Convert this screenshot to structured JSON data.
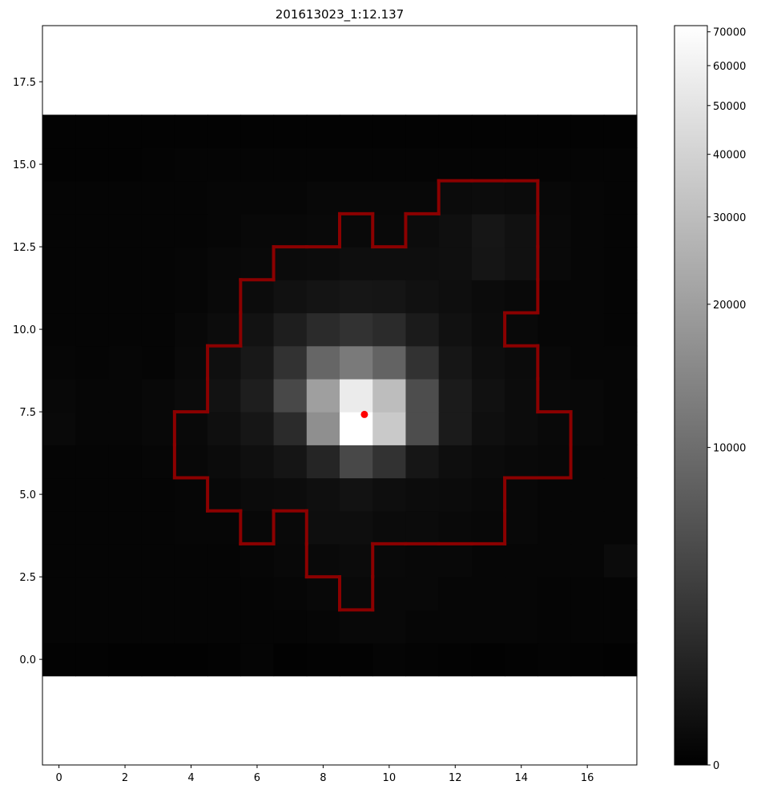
{
  "chart_data": [
    {
      "type": "heatmap",
      "title": "201613023_1:12.137",
      "xlabel": "",
      "ylabel": "",
      "xlim": [
        -0.5,
        17.5
      ],
      "ylim": [
        -3.2,
        19.2
      ],
      "x_ticks": [
        0,
        2,
        4,
        6,
        8,
        10,
        12,
        14,
        16
      ],
      "x_tick_labels": [
        "0",
        "2",
        "4",
        "6",
        "8",
        "10",
        "12",
        "14",
        "16"
      ],
      "y_ticks": [
        0.0,
        2.5,
        5.0,
        7.5,
        10.0,
        12.5,
        15.0,
        17.5
      ],
      "y_tick_labels": [
        "0.0",
        "2.5",
        "5.0",
        "7.5",
        "10.0",
        "12.5",
        "15.0",
        "17.5"
      ],
      "colormap": "gray",
      "grid": false,
      "pixel_values_note_rows_bottom_to_top_y0_to_y16_cols_x0_to_x17": true,
      "values": [
        [
          200,
          200,
          150,
          150,
          150,
          200,
          300,
          150,
          200,
          200,
          300,
          250,
          200,
          150,
          200,
          250,
          200,
          150
        ],
        [
          300,
          300,
          300,
          300,
          300,
          300,
          300,
          300,
          400,
          500,
          500,
          400,
          400,
          400,
          400,
          300,
          300,
          300
        ],
        [
          300,
          300,
          300,
          300,
          300,
          300,
          300,
          400,
          500,
          600,
          500,
          500,
          400,
          400,
          400,
          300,
          300,
          300
        ],
        [
          300,
          300,
          300,
          300,
          350,
          350,
          400,
          500,
          600,
          700,
          600,
          500,
          500,
          400,
          400,
          400,
          400,
          700
        ],
        [
          300,
          300,
          300,
          350,
          400,
          400,
          500,
          600,
          900,
          900,
          700,
          700,
          600,
          500,
          500,
          400,
          400,
          400
        ],
        [
          300,
          300,
          300,
          350,
          400,
          500,
          700,
          800,
          1000,
          1200,
          900,
          800,
          700,
          600,
          500,
          400,
          400,
          400
        ],
        [
          300,
          300,
          300,
          400,
          500,
          700,
          1000,
          1400,
          2500,
          5500,
          3500,
          1500,
          900,
          700,
          600,
          500,
          400,
          400
        ],
        [
          600,
          400,
          400,
          500,
          600,
          1000,
          1500,
          3000,
          16000,
          75000,
          35000,
          6000,
          1800,
          1000,
          800,
          600,
          500,
          400
        ],
        [
          500,
          400,
          400,
          500,
          700,
          1200,
          2000,
          5500,
          20000,
          55000,
          30000,
          6000,
          1800,
          1100,
          800,
          600,
          500,
          400
        ],
        [
          400,
          350,
          400,
          300,
          600,
          1000,
          1600,
          3500,
          9000,
          12000,
          8500,
          3500,
          1500,
          900,
          700,
          500,
          400,
          400
        ],
        [
          300,
          300,
          300,
          300,
          500,
          800,
          1200,
          2000,
          3000,
          3500,
          3000,
          1800,
          1100,
          800,
          600,
          400,
          400,
          300
        ],
        [
          300,
          300,
          300,
          300,
          400,
          600,
          800,
          1100,
          1300,
          1500,
          1400,
          1100,
          900,
          700,
          600,
          400,
          400,
          300
        ],
        [
          300,
          300,
          300,
          300,
          400,
          500,
          600,
          700,
          800,
          900,
          900,
          900,
          1000,
          1400,
          1100,
          600,
          400,
          300
        ],
        [
          300,
          300,
          300,
          300,
          350,
          400,
          500,
          500,
          600,
          600,
          600,
          800,
          1000,
          1500,
          1100,
          600,
          400,
          300
        ],
        [
          300,
          300,
          300,
          300,
          300,
          400,
          400,
          400,
          500,
          500,
          500,
          500,
          700,
          800,
          700,
          500,
          400,
          300
        ],
        [
          200,
          200,
          200,
          250,
          300,
          350,
          300,
          300,
          300,
          300,
          300,
          300,
          300,
          300,
          300,
          300,
          300,
          300
        ],
        [
          200,
          200,
          200,
          200,
          200,
          200,
          200,
          200,
          200,
          200,
          200,
          200,
          200,
          200,
          200,
          200,
          200,
          200
        ]
      ],
      "aperture_color": "#8b0000",
      "aperture_pixels": [
        [
          9,
          2
        ],
        [
          8,
          3
        ],
        [
          9,
          3
        ],
        [
          6,
          4
        ],
        [
          8,
          4
        ],
        [
          9,
          4
        ],
        [
          10,
          4
        ],
        [
          11,
          4
        ],
        [
          12,
          4
        ],
        [
          13,
          4
        ],
        [
          5,
          5
        ],
        [
          6,
          5
        ],
        [
          7,
          5
        ],
        [
          8,
          5
        ],
        [
          9,
          5
        ],
        [
          10,
          5
        ],
        [
          11,
          5
        ],
        [
          12,
          5
        ],
        [
          13,
          5
        ],
        [
          4,
          6
        ],
        [
          5,
          6
        ],
        [
          6,
          6
        ],
        [
          7,
          6
        ],
        [
          8,
          6
        ],
        [
          9,
          6
        ],
        [
          10,
          6
        ],
        [
          11,
          6
        ],
        [
          12,
          6
        ],
        [
          13,
          6
        ],
        [
          14,
          6
        ],
        [
          15,
          6
        ],
        [
          4,
          7
        ],
        [
          5,
          7
        ],
        [
          6,
          7
        ],
        [
          7,
          7
        ],
        [
          8,
          7
        ],
        [
          9,
          7
        ],
        [
          10,
          7
        ],
        [
          11,
          7
        ],
        [
          12,
          7
        ],
        [
          13,
          7
        ],
        [
          14,
          7
        ],
        [
          15,
          7
        ],
        [
          5,
          8
        ],
        [
          6,
          8
        ],
        [
          7,
          8
        ],
        [
          8,
          8
        ],
        [
          9,
          8
        ],
        [
          10,
          8
        ],
        [
          11,
          8
        ],
        [
          12,
          8
        ],
        [
          13,
          8
        ],
        [
          14,
          8
        ],
        [
          5,
          9
        ],
        [
          6,
          9
        ],
        [
          7,
          9
        ],
        [
          8,
          9
        ],
        [
          9,
          9
        ],
        [
          10,
          9
        ],
        [
          11,
          9
        ],
        [
          12,
          9
        ],
        [
          13,
          9
        ],
        [
          14,
          9
        ],
        [
          6,
          10
        ],
        [
          7,
          10
        ],
        [
          8,
          10
        ],
        [
          9,
          10
        ],
        [
          10,
          10
        ],
        [
          11,
          10
        ],
        [
          12,
          10
        ],
        [
          13,
          10
        ],
        [
          6,
          11
        ],
        [
          7,
          11
        ],
        [
          8,
          11
        ],
        [
          9,
          11
        ],
        [
          10,
          11
        ],
        [
          11,
          11
        ],
        [
          12,
          11
        ],
        [
          13,
          11
        ],
        [
          14,
          11
        ],
        [
          7,
          12
        ],
        [
          8,
          12
        ],
        [
          9,
          12
        ],
        [
          10,
          12
        ],
        [
          11,
          12
        ],
        [
          12,
          12
        ],
        [
          13,
          12
        ],
        [
          14,
          12
        ],
        [
          9,
          13
        ],
        [
          11,
          13
        ],
        [
          12,
          13
        ],
        [
          13,
          13
        ],
        [
          14,
          13
        ],
        [
          12,
          14
        ],
        [
          13,
          14
        ],
        [
          14,
          14
        ]
      ],
      "centroid": {
        "x": 9.25,
        "y": 7.42,
        "color": "#ff0000"
      }
    },
    {
      "type": "colorbar",
      "scale": "asinh-like nonlinear",
      "range": [
        0,
        72000
      ],
      "tick_values": [
        0,
        10000,
        20000,
        30000,
        40000,
        50000,
        60000,
        70000
      ],
      "tick_labels": [
        "0",
        "10000",
        "20000",
        "30000",
        "40000",
        "50000",
        "60000",
        "70000"
      ]
    }
  ]
}
